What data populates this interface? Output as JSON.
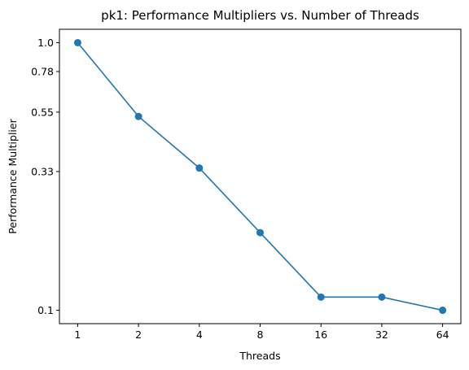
{
  "chart_data": {
    "type": "line",
    "title": "pk1: Performance Multipliers vs. Number of Threads",
    "xlabel": "Threads",
    "ylabel": "Performance Multiplier",
    "x_scale": "log2",
    "y_scale": "log",
    "x_ticks": [
      "1",
      "2",
      "4",
      "8",
      "16",
      "32",
      "64"
    ],
    "y_ticks": [
      "0.1",
      "0.33",
      "0.55",
      "0.78",
      "1.0"
    ],
    "grid": false,
    "series": [
      {
        "color": "#1f77b4",
        "marker": "circle",
        "x": [
          1,
          2,
          4,
          8,
          16,
          32,
          64
        ],
        "y": [
          1.0,
          0.53,
          0.34,
          0.195,
          0.112,
          0.112,
          0.1
        ]
      }
    ]
  }
}
